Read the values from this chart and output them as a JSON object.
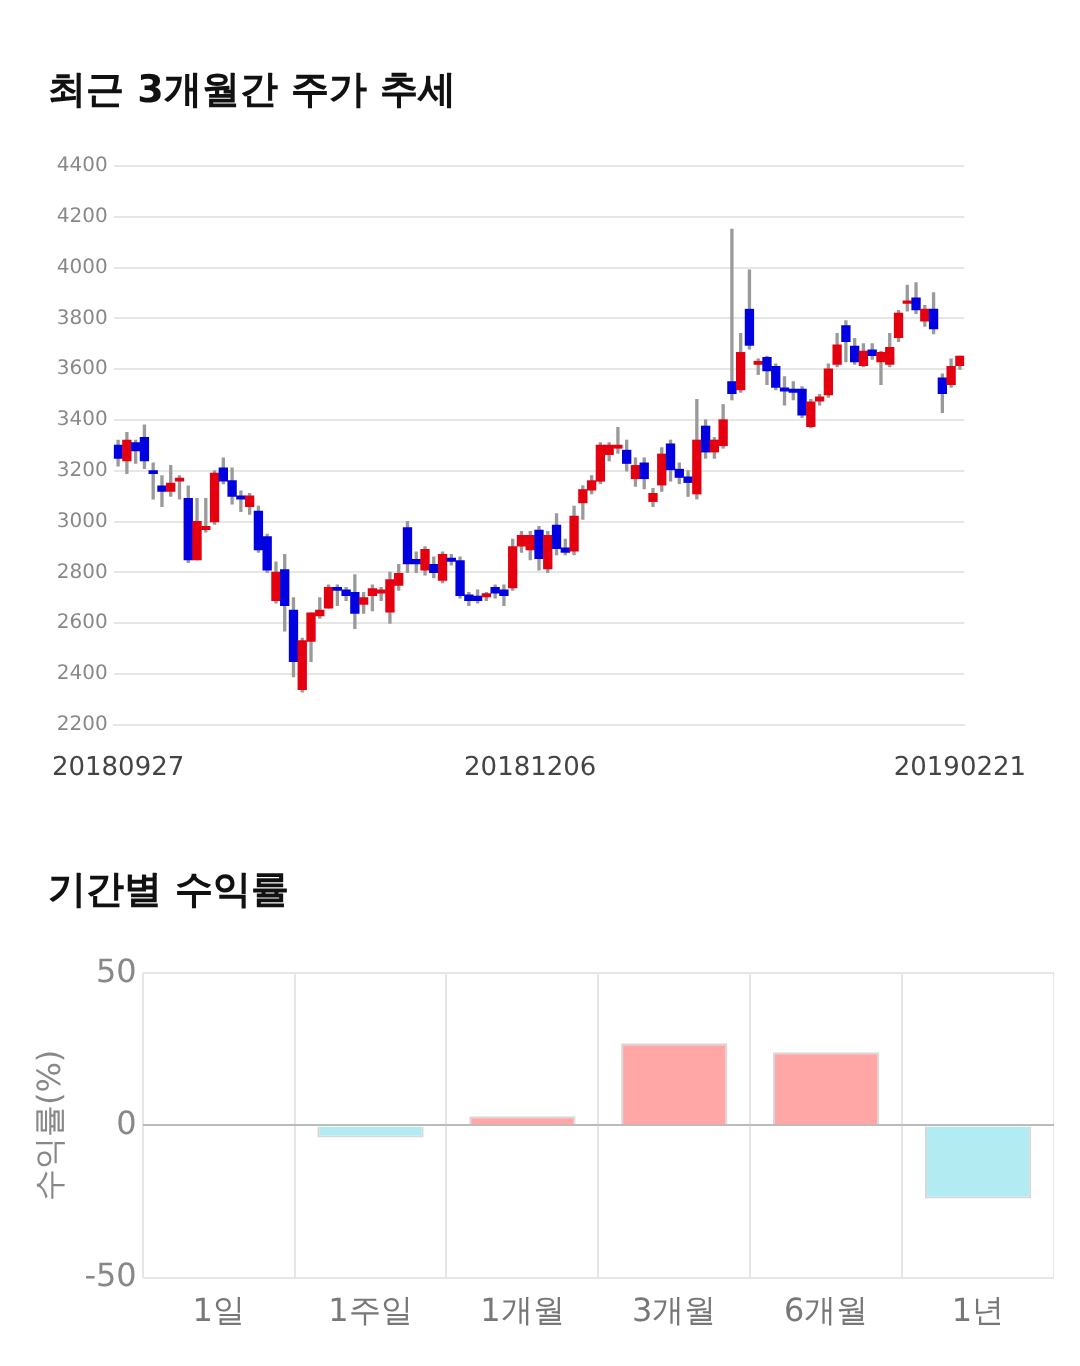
{
  "chart_data": [
    {
      "type": "candlestick",
      "title": "최근 3개월간 주가 추세",
      "categories": [
        "20180927",
        null,
        null,
        null,
        null,
        null,
        null,
        null,
        null,
        null,
        null,
        null,
        null,
        null,
        null,
        null,
        null,
        null,
        null,
        null,
        null,
        null,
        null,
        null,
        null,
        null,
        null,
        null,
        null,
        null,
        null,
        null,
        null,
        null,
        null,
        null,
        null,
        null,
        null,
        null,
        null,
        null,
        null,
        null,
        null,
        null,
        null,
        "20181206",
        null,
        null,
        null,
        null,
        null,
        null,
        null,
        null,
        null,
        null,
        null,
        null,
        null,
        null,
        null,
        null,
        null,
        null,
        null,
        null,
        null,
        null,
        null,
        null,
        null,
        null,
        null,
        null,
        null,
        null,
        null,
        null,
        null,
        null,
        null,
        null,
        null,
        null,
        null,
        null,
        null,
        null,
        null,
        null,
        null,
        null,
        null,
        null,
        "20190221"
      ],
      "ohlc": [
        [
          3300,
          3320,
          3220,
          3250
        ],
        [
          3240,
          3350,
          3190,
          3320
        ],
        [
          3310,
          3320,
          3230,
          3280
        ],
        [
          3330,
          3380,
          3210,
          3240
        ],
        [
          3200,
          3230,
          3090,
          3190
        ],
        [
          3140,
          3180,
          3060,
          3120
        ],
        [
          3120,
          3220,
          3100,
          3150
        ],
        [
          3160,
          3180,
          3090,
          3170
        ],
        [
          3090,
          3140,
          2840,
          2850
        ],
        [
          2850,
          3090,
          2850,
          3000
        ],
        [
          2970,
          3090,
          2960,
          2980
        ],
        [
          3000,
          3200,
          2990,
          3190
        ],
        [
          3210,
          3250,
          3150,
          3160
        ],
        [
          3160,
          3210,
          3070,
          3100
        ],
        [
          3100,
          3120,
          3040,
          3090
        ],
        [
          3060,
          3110,
          3030,
          3100
        ],
        [
          3040,
          3060,
          2880,
          2890
        ],
        [
          2940,
          2950,
          2800,
          2810
        ],
        [
          2690,
          2840,
          2680,
          2800
        ],
        [
          2810,
          2870,
          2570,
          2670
        ],
        [
          2650,
          2700,
          2390,
          2450
        ],
        [
          2340,
          2540,
          2330,
          2530
        ],
        [
          2530,
          2640,
          2450,
          2640
        ],
        [
          2630,
          2700,
          2620,
          2650
        ],
        [
          2660,
          2750,
          2660,
          2740
        ],
        [
          2740,
          2750,
          2670,
          2730
        ],
        [
          2730,
          2740,
          2690,
          2710
        ],
        [
          2720,
          2790,
          2580,
          2640
        ],
        [
          2675,
          2720,
          2640,
          2700
        ],
        [
          2710,
          2750,
          2650,
          2735
        ],
        [
          2720,
          2740,
          2690,
          2730
        ],
        [
          2645,
          2800,
          2600,
          2770
        ],
        [
          2750,
          2830,
          2730,
          2795
        ],
        [
          2975,
          3000,
          2800,
          2835
        ],
        [
          2850,
          2880,
          2800,
          2835
        ],
        [
          2810,
          2900,
          2790,
          2890
        ],
        [
          2830,
          2860,
          2780,
          2800
        ],
        [
          2770,
          2880,
          2760,
          2870
        ],
        [
          2855,
          2870,
          2830,
          2845
        ],
        [
          2845,
          2860,
          2700,
          2710
        ],
        [
          2710,
          2720,
          2670,
          2690
        ],
        [
          2705,
          2730,
          2680,
          2690
        ],
        [
          2705,
          2720,
          2690,
          2715
        ],
        [
          2740,
          2750,
          2700,
          2720
        ],
        [
          2730,
          2750,
          2670,
          2710
        ],
        [
          2740,
          2930,
          2730,
          2900
        ],
        [
          2905,
          2960,
          2880,
          2945
        ],
        [
          2890,
          2960,
          2850,
          2945
        ],
        [
          2965,
          2980,
          2810,
          2855
        ],
        [
          2815,
          2960,
          2800,
          2945
        ],
        [
          2985,
          3030,
          2870,
          2895
        ],
        [
          2895,
          2930,
          2870,
          2880
        ],
        [
          2885,
          3060,
          2870,
          3020
        ],
        [
          3075,
          3140,
          3010,
          3125
        ],
        [
          3125,
          3180,
          3110,
          3160
        ],
        [
          3160,
          3310,
          3150,
          3300
        ],
        [
          3265,
          3310,
          3240,
          3300
        ],
        [
          3290,
          3370,
          3270,
          3300
        ],
        [
          3280,
          3320,
          3200,
          3230
        ],
        [
          3170,
          3250,
          3140,
          3220
        ],
        [
          3230,
          3250,
          3130,
          3170
        ],
        [
          3080,
          3130,
          3060,
          3110
        ],
        [
          3145,
          3290,
          3120,
          3265
        ],
        [
          3305,
          3320,
          3160,
          3205
        ],
        [
          3205,
          3230,
          3150,
          3175
        ],
        [
          3175,
          3200,
          3100,
          3155
        ],
        [
          3110,
          3480,
          3090,
          3320
        ],
        [
          3375,
          3400,
          3250,
          3275
        ],
        [
          3275,
          3330,
          3250,
          3320
        ],
        [
          3300,
          3460,
          3290,
          3400
        ],
        [
          3550,
          4150,
          3480,
          3505
        ],
        [
          3520,
          3740,
          3510,
          3665
        ],
        [
          3835,
          3990,
          3680,
          3695
        ],
        [
          3620,
          3640,
          3580,
          3630
        ],
        [
          3645,
          3650,
          3540,
          3595
        ],
        [
          3610,
          3620,
          3520,
          3530
        ],
        [
          3525,
          3570,
          3460,
          3515
        ],
        [
          3520,
          3550,
          3480,
          3510
        ],
        [
          3520,
          3530,
          3410,
          3420
        ],
        [
          3375,
          3480,
          3370,
          3470
        ],
        [
          3475,
          3500,
          3460,
          3490
        ],
        [
          3500,
          3620,
          3490,
          3600
        ],
        [
          3620,
          3740,
          3610,
          3695
        ],
        [
          3770,
          3790,
          3630,
          3710
        ],
        [
          3690,
          3720,
          3620,
          3630
        ],
        [
          3615,
          3700,
          3610,
          3670
        ],
        [
          3675,
          3700,
          3640,
          3655
        ],
        [
          3630,
          3670,
          3540,
          3665
        ],
        [
          3620,
          3740,
          3610,
          3685
        ],
        [
          3725,
          3830,
          3710,
          3820
        ],
        [
          3860,
          3930,
          3830,
          3865
        ],
        [
          3880,
          3940,
          3820,
          3835
        ],
        [
          3790,
          3850,
          3770,
          3835
        ],
        [
          3835,
          3900,
          3740,
          3760
        ],
        [
          3565,
          3580,
          3430,
          3505
        ],
        [
          3540,
          3640,
          3530,
          3610
        ],
        [
          3615,
          3650,
          3600,
          3650
        ]
      ],
      "ylim": [
        2200,
        4400
      ],
      "yticks": [
        2200,
        2400,
        2600,
        2800,
        3000,
        3200,
        3400,
        3600,
        3800,
        4000,
        4200,
        4400
      ],
      "grid": "y"
    },
    {
      "type": "bar",
      "title": "기간별 수익률",
      "ylabel": "수익률(%)",
      "categories": [
        "1일",
        "1주일",
        "1개월",
        "3개월",
        "6개월",
        "1년"
      ],
      "values": [
        0,
        -4,
        3,
        27,
        24,
        -24
      ],
      "colors": [
        "#ffa6a6",
        "#b3ebf2",
        "#ffa6a6",
        "#ffa6a6",
        "#ffa6a6",
        "#b3ebf2"
      ],
      "ylim": [
        -50,
        50
      ],
      "yticks": [
        -50,
        0,
        50
      ],
      "grid": true
    }
  ]
}
